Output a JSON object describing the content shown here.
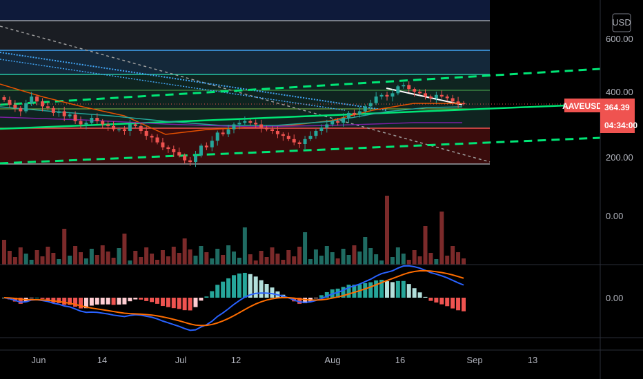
{
  "currency_button": "USD",
  "symbol": "AAVEUSD",
  "last_price": "364.39",
  "countdown": "04:34:00",
  "colors": {
    "up": "#26a69a",
    "down": "#ef5350",
    "up_volume": "#1f6b62",
    "down_volume": "#7b2a2a",
    "price_tag": "#ef5350",
    "macd_line": "#2962ff",
    "signal_line": "#ff6d00",
    "trend_line": "#00e676",
    "channel_dashed": "#00e676"
  },
  "price_axis": {
    "labels": [
      "600.00",
      "400.00",
      "200.00"
    ]
  },
  "volume_axis": {
    "labels": [
      "0.00"
    ]
  },
  "macd_axis": {
    "labels": [
      "0.00"
    ]
  },
  "time_axis": {
    "labels": [
      "Jun",
      "14",
      "Jul",
      "12",
      "Aug",
      "16",
      "Sep",
      "13"
    ]
  },
  "chart_data": {
    "type": "candlestick",
    "symbol": "AAVEUSD",
    "currency": "USD",
    "x_ticks": [
      "Jun",
      "14",
      "Jul",
      "12",
      "Aug",
      "16",
      "Sep",
      "13"
    ],
    "y_ticks": [
      600,
      400,
      200
    ],
    "ylim": [
      165,
      690
    ],
    "last_price": 364.39,
    "close": [
      375,
      360,
      350,
      340,
      365,
      385,
      370,
      355,
      350,
      335,
      340,
      325,
      330,
      310,
      300,
      305,
      320,
      310,
      300,
      295,
      285,
      285,
      280,
      300,
      295,
      280,
      265,
      260,
      245,
      230,
      225,
      215,
      205,
      190,
      185,
      205,
      235,
      230,
      250,
      275,
      270,
      285,
      300,
      305,
      310,
      305,
      300,
      290,
      285,
      280,
      270,
      265,
      255,
      245,
      240,
      255,
      265,
      280,
      290,
      300,
      310,
      305,
      320,
      335,
      330,
      340,
      355,
      365,
      385,
      390,
      385,
      395,
      420,
      425,
      410,
      400,
      395,
      385,
      380,
      390,
      385,
      380,
      370,
      365,
      364
    ],
    "indicators": [
      "Volume",
      "MACD"
    ]
  }
}
